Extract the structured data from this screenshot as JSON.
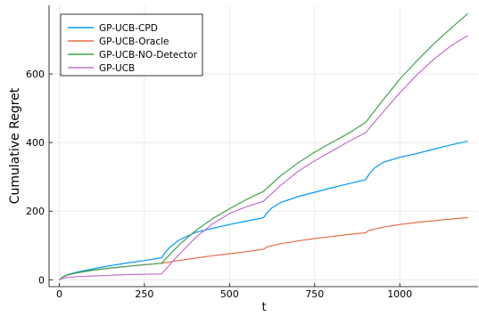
{
  "chart_data": {
    "type": "line",
    "title": "",
    "xlabel": "t",
    "ylabel": "Cumulative Regret",
    "xlim": [
      -30,
      1230
    ],
    "ylim": [
      -20,
      800
    ],
    "xticks": [
      0,
      250,
      500,
      750,
      1000
    ],
    "yticks": [
      0,
      200,
      400,
      600
    ],
    "grid": true,
    "legend_position": "top-left",
    "series": [
      {
        "name": "GP-UCB-CPD",
        "color": "#009AFA",
        "x": [
          0,
          10,
          25,
          50,
          100,
          150,
          200,
          250,
          300,
          310,
          325,
          350,
          400,
          450,
          500,
          550,
          600,
          610,
          625,
          650,
          700,
          750,
          800,
          850,
          900,
          910,
          925,
          950,
          1000,
          1050,
          1100,
          1150,
          1200
        ],
        "y": [
          0,
          8,
          15,
          22,
          32,
          41,
          49,
          56,
          64,
          78,
          95,
          115,
          138,
          150,
          161,
          171,
          181,
          195,
          210,
          225,
          242,
          255,
          268,
          280,
          292,
          308,
          325,
          342,
          357,
          368,
          381,
          393,
          404
        ]
      },
      {
        "name": "GP-UCB-Oracle",
        "color": "#E36F47",
        "x": [
          0,
          10,
          25,
          50,
          100,
          150,
          200,
          250,
          300,
          350,
          400,
          450,
          500,
          550,
          600,
          610,
          650,
          700,
          750,
          800,
          850,
          900,
          910,
          950,
          1000,
          1050,
          1100,
          1150,
          1200
        ],
        "y": [
          0,
          8,
          14,
          20,
          28,
          34,
          39,
          44,
          48,
          56,
          63,
          70,
          76,
          82,
          89,
          96,
          105,
          113,
          120,
          126,
          132,
          137,
          144,
          153,
          161,
          167,
          172,
          177,
          181
        ]
      },
      {
        "name": "GP-UCB-NO-Detector",
        "color": "#3EA44E",
        "x": [
          0,
          10,
          25,
          50,
          100,
          150,
          200,
          250,
          300,
          350,
          400,
          450,
          500,
          550,
          600,
          650,
          700,
          750,
          800,
          850,
          900,
          950,
          1000,
          1050,
          1100,
          1150,
          1200
        ],
        "y": [
          0,
          8,
          14,
          20,
          28,
          34,
          39,
          44,
          48,
          100,
          143,
          178,
          207,
          234,
          258,
          303,
          340,
          372,
          400,
          427,
          459,
          523,
          585,
          638,
          688,
          733,
          776
        ]
      },
      {
        "name": "GP-UCB",
        "color": "#C271D2",
        "x": [
          0,
          10,
          25,
          50,
          100,
          150,
          200,
          250,
          300,
          350,
          400,
          450,
          500,
          550,
          600,
          650,
          700,
          750,
          800,
          850,
          900,
          950,
          1000,
          1050,
          1100,
          1150,
          1200
        ],
        "y": [
          0,
          4,
          7,
          9,
          11,
          13,
          15,
          16,
          17,
          72,
          123,
          163,
          193,
          213,
          229,
          275,
          315,
          347,
          375,
          403,
          429,
          488,
          545,
          597,
          643,
          682,
          712
        ]
      }
    ]
  }
}
